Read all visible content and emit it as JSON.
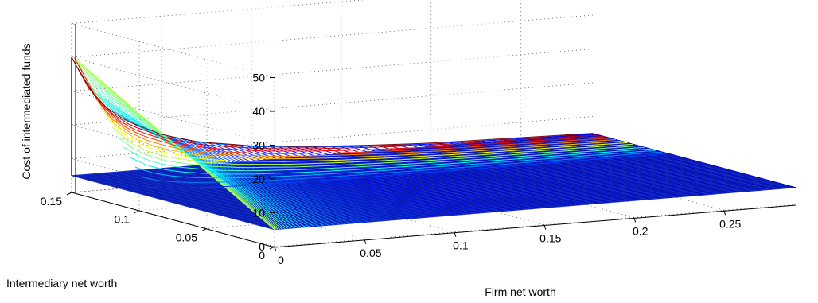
{
  "chart_data": {
    "type": "surface",
    "title": "",
    "zlabel": "Cost of intermediated funds",
    "ylabel": "Intermediary net worth",
    "xlabel": "Firm net worth",
    "z_ticks": [
      "0",
      "10",
      "20",
      "30",
      "40",
      "50"
    ],
    "y_ticks": [
      "0",
      "0.05",
      "0.1",
      "0.15"
    ],
    "x_ticks": [
      "0",
      "0.05",
      "0.1",
      "0.15",
      "0.2",
      "0.25"
    ],
    "xlim": [
      0,
      0.29
    ],
    "ylim": [
      0,
      0.15
    ],
    "zlim": [
      0,
      50
    ],
    "grid": true,
    "colormap": "jet",
    "surface_floor_value": 5,
    "peak": {
      "x": 0,
      "y": 0.15,
      "z": 40
    },
    "ridge_profile": {
      "x": [
        0,
        0.01,
        0.02,
        0.03,
        0.05,
        0.07,
        0.1,
        0.13,
        0.16,
        0.2,
        0.25,
        0.29
      ],
      "z": [
        40,
        30,
        24,
        20,
        15,
        12,
        9.5,
        8,
        7,
        6,
        5.5,
        5
      ]
    }
  }
}
